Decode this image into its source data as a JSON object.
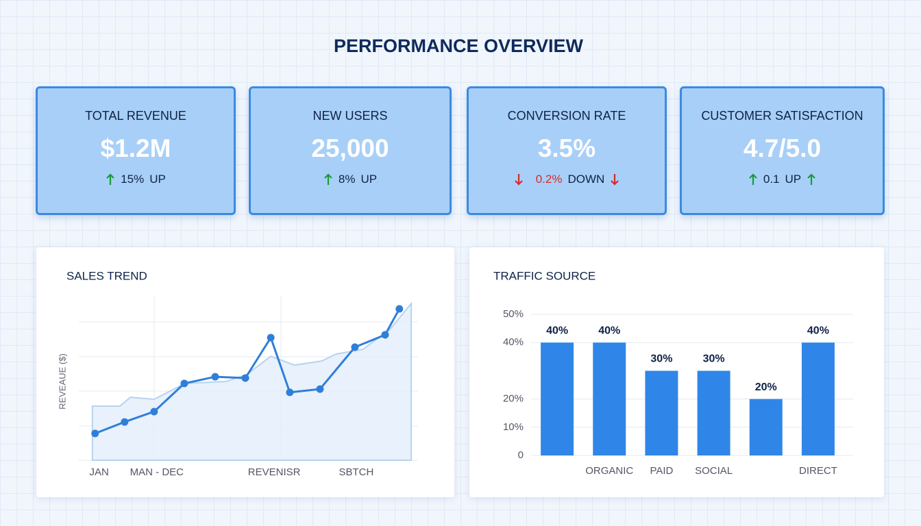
{
  "header": {
    "title": "PERFORMANCE OVERVIEW"
  },
  "kpis": [
    {
      "title": "TOTAL REVENUE",
      "value": "$1.2M",
      "change": "15%",
      "direction": "UP"
    },
    {
      "title": "NEW USERS",
      "value": "25,000",
      "change": "8%",
      "direction": "UP"
    },
    {
      "title": "CONVERSION RATE",
      "value": "3.5%",
      "change": "0.2%",
      "direction": "DOWN"
    },
    {
      "title": "CUSTOMER SATISFACTION",
      "value": "4.7/5.0",
      "change": "0.1",
      "direction": "UP"
    }
  ],
  "chart_data": [
    {
      "type": "line",
      "title": "SALES TREND",
      "y_label": "REVEAUE ($)",
      "xlim": [
        0,
        100
      ],
      "ylim": [
        0,
        100
      ],
      "xticks": [
        {
          "value": 6,
          "label": "JAN"
        },
        {
          "value": 23,
          "label": "MAN - DEC"
        },
        {
          "value": 57.6,
          "label": "REVENISR"
        },
        {
          "value": 81.8,
          "label": "SBTCH"
        }
      ],
      "series": [
        {
          "color": "#b7d3f0",
          "area": true,
          "x": [
            4,
            12.1,
            15.2,
            22.2,
            31.3,
            43.4,
            49.5,
            56.6,
            63.6,
            71.7,
            75.8,
            83.8,
            91.9,
            98
          ],
          "values": [
            32.9,
            32.9,
            38.3,
            37.1,
            46.7,
            47.9,
            52.1,
            63.3,
            57.9,
            60.4,
            64.6,
            67.5,
            80,
            95.4
          ]
        },
        {
          "color": "#2f7fd8",
          "x": [
            4.8,
            13.5,
            22.2,
            31.1,
            40.2,
            49.1,
            56.6,
            62.2,
            71.1,
            81.4,
            90.3,
            94.5
          ],
          "values": [
            16.3,
            23.3,
            29.6,
            46.7,
            50.8,
            50,
            74.6,
            41.3,
            43.3,
            68.8,
            76.3,
            92.1
          ]
        }
      ]
    },
    {
      "type": "bar",
      "title": "TRAFFIC SOURCE",
      "categories": [
        null,
        "ORGANIC",
        "PAID",
        "SOCIAL",
        null,
        "DIRECT"
      ],
      "values": [
        40,
        40,
        30,
        30,
        20,
        40
      ],
      "value_labels": [
        "40%",
        "40%",
        "30%",
        "30%",
        "20%",
        "40%"
      ],
      "color": "#2f86e8",
      "ylim": [
        0,
        50
      ],
      "yticks": [
        0,
        {
          "value": 10,
          "label": "10%"
        },
        {
          "value": 20,
          "label": "20%"
        },
        {
          "value": 40,
          "label": "40%"
        },
        {
          "value": 50,
          "label": "50%"
        }
      ],
      "grid": true
    }
  ]
}
